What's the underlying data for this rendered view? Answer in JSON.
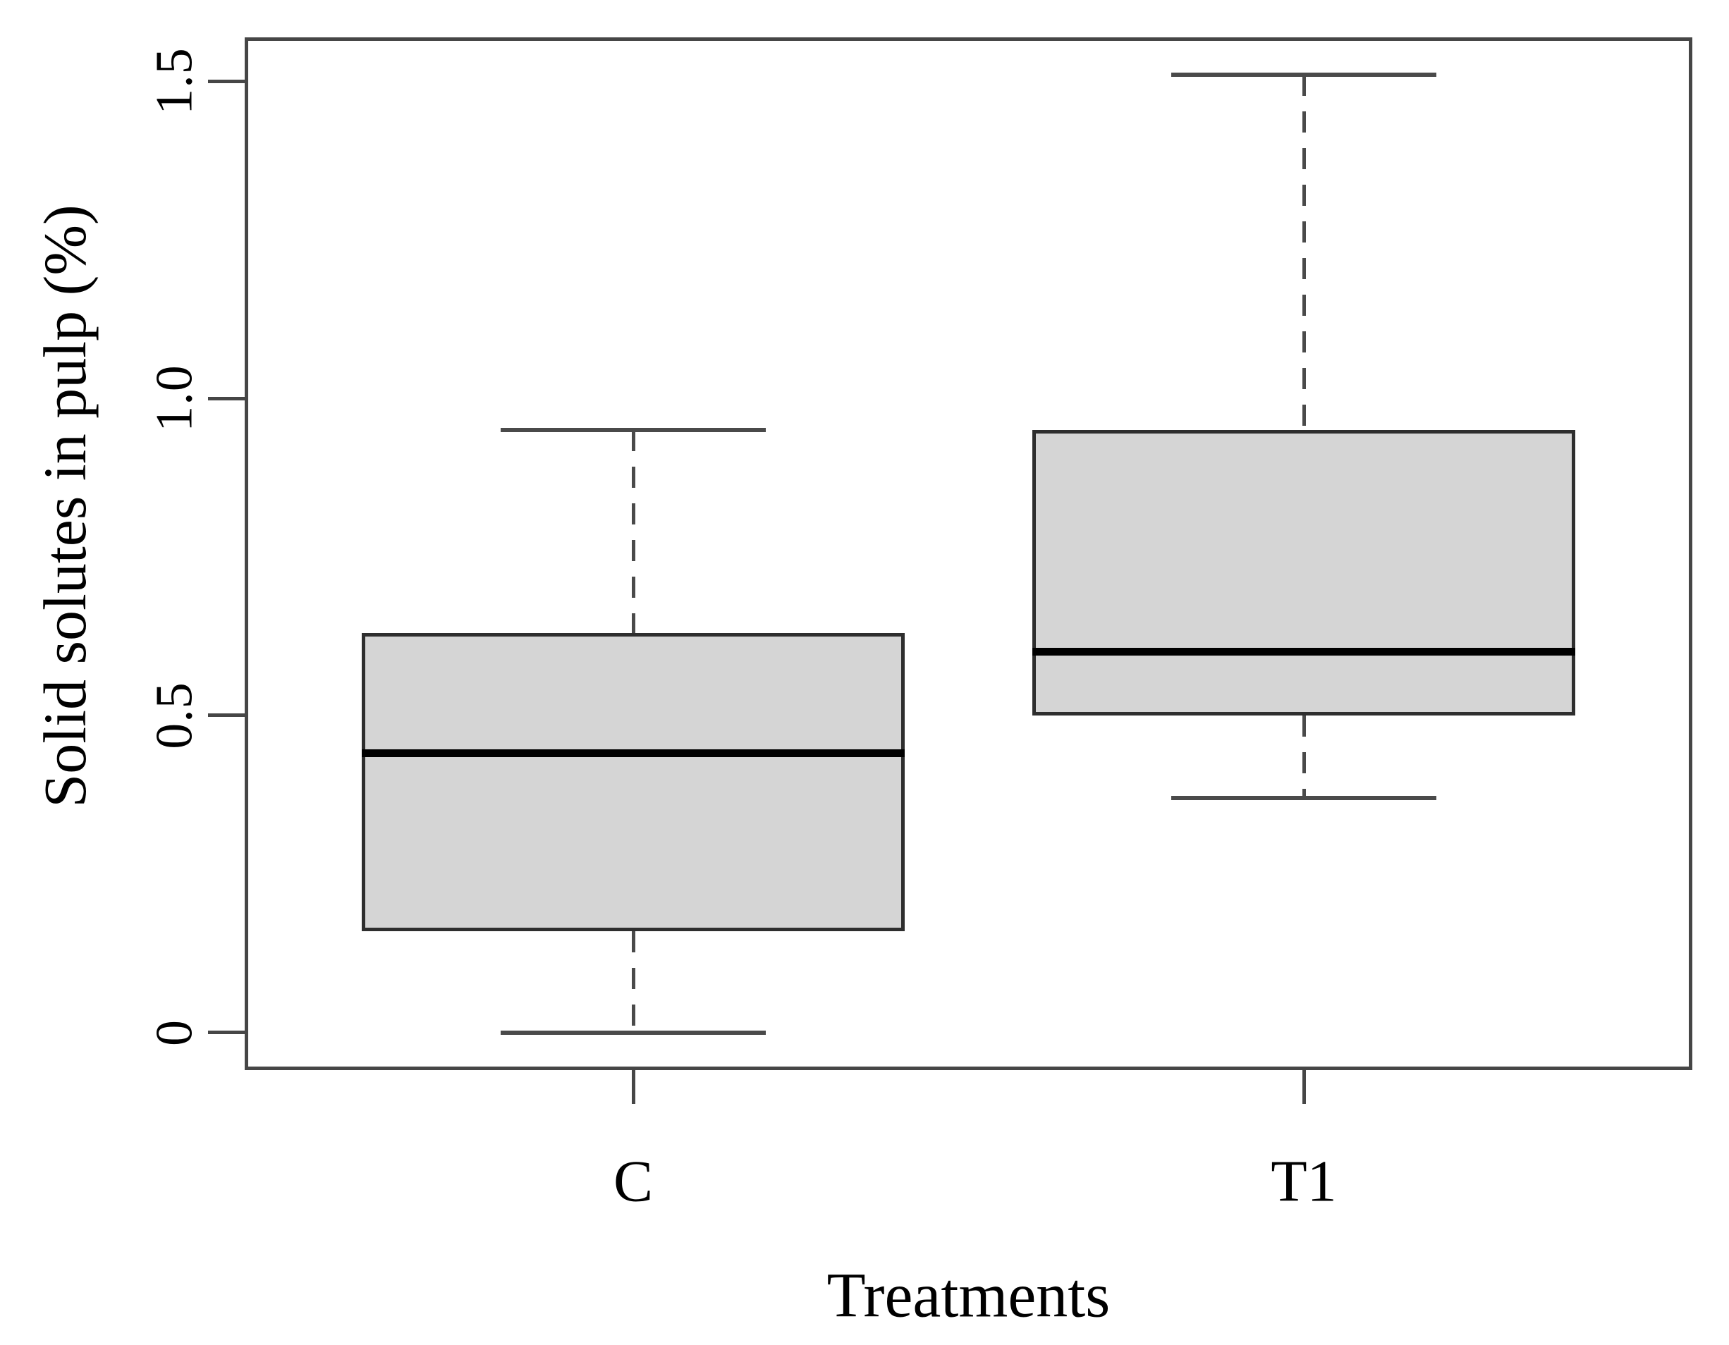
{
  "chart_data": {
    "type": "boxplot",
    "title": "",
    "xlabel": "Treatments",
    "ylabel": "Solid solutes in pulp (%)",
    "categories": [
      "C",
      "T1"
    ],
    "series": [
      {
        "name": "C",
        "min": 0.0,
        "q1": 0.16,
        "median": 0.44,
        "q3": 0.63,
        "max": 0.95,
        "outliers": []
      },
      {
        "name": "T1",
        "min": 0.37,
        "q1": 0.5,
        "median": 0.6,
        "q3": 0.95,
        "max": 1.51,
        "outliers": []
      }
    ],
    "yticks": [
      0,
      0.5,
      1.0,
      1.5
    ],
    "ytick_labels": [
      "0",
      "0.5",
      "1.0",
      "1.5"
    ],
    "ylim": [
      -0.059,
      1.569
    ],
    "grid": false,
    "legend": "none",
    "orientation": "vertical",
    "colors": {
      "box_fill": "#d5d5d5",
      "box_border": "#2e2e2e",
      "median": "#000000",
      "whisker": "#4a4a4a",
      "axis": "#464646",
      "text": "#000000",
      "background": "#ffffff"
    }
  }
}
